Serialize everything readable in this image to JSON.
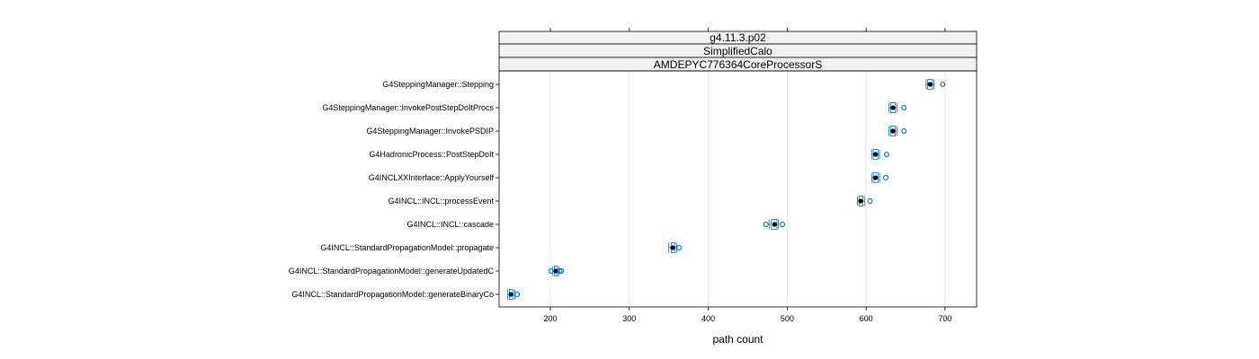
{
  "chart_data": {
    "type": "box",
    "strips": [
      "g4.11.3.p02",
      "SimplifiedCalo",
      "AMDEPYC776364CoreProcessorS"
    ],
    "xlabel": "path count",
    "xlim": [
      135,
      740
    ],
    "x_ticks": [
      200,
      300,
      400,
      500,
      600,
      700
    ],
    "grid": true,
    "colors": {
      "box": "#0072B2",
      "median": "#000000",
      "grid": "#e6e6e6",
      "strip_bg": "#f2f2f2"
    },
    "categories": [
      "G4SteppingManager::Stepping",
      "G4SteppingManager::InvokePostStepDoItProcs",
      "G4SteppingManager::InvokePSDIP",
      "G4HadronicProcess::PostStepDoIt",
      "G4INCLXXInterface::ApplyYourself",
      "G4INCL::INCL::processEvent",
      "G4INCL::INCL::cascade",
      "G4INCL::StandardPropagationModel::propagate",
      "G4INCL::StandardPropagationModel::generateUpdatedC",
      "G4INCL::StandardPropagationModel::generateBinaryCo"
    ],
    "boxes": [
      {
        "min": 676,
        "q1": 678,
        "median": 681,
        "q3": 684,
        "max": 686,
        "outliers": [
          697
        ]
      },
      {
        "min": 629,
        "q1": 631,
        "median": 634,
        "q3": 637,
        "max": 639,
        "outliers": [
          648
        ]
      },
      {
        "min": 629,
        "q1": 631,
        "median": 634,
        "q3": 637,
        "max": 639,
        "outliers": [
          648
        ]
      },
      {
        "min": 607,
        "q1": 609,
        "median": 612,
        "q3": 615,
        "max": 617,
        "outliers": [
          626
        ]
      },
      {
        "min": 607,
        "q1": 609,
        "median": 612,
        "q3": 615,
        "max": 617,
        "outliers": [
          625
        ]
      },
      {
        "min": 589,
        "q1": 591,
        "median": 593,
        "q3": 596,
        "max": 598,
        "outliers": [
          605
        ]
      },
      {
        "min": 477,
        "q1": 480,
        "median": 484,
        "q3": 487,
        "max": 489,
        "outliers": [
          473,
          494
        ]
      },
      {
        "min": 350,
        "q1": 353,
        "median": 355,
        "q3": 358,
        "max": 360,
        "outliers": [
          363
        ]
      },
      {
        "min": 203,
        "q1": 205,
        "median": 207,
        "q3": 209,
        "max": 211,
        "outliers": [
          201,
          212,
          214
        ]
      },
      {
        "min": 146,
        "q1": 148,
        "median": 150,
        "q3": 153,
        "max": 155,
        "outliers": [
          158
        ]
      }
    ]
  }
}
